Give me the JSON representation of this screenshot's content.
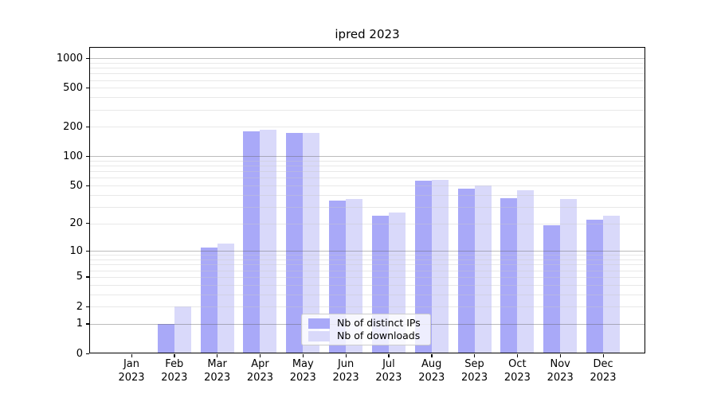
{
  "chart_data": {
    "type": "bar",
    "title": "ipred 2023",
    "categories": [
      "Jan 2023",
      "Feb 2023",
      "Mar 2023",
      "Apr 2023",
      "May 2023",
      "Jun 2023",
      "Jul 2023",
      "Aug 2023",
      "Sep 2023",
      "Oct 2023",
      "Nov 2023",
      "Dec 2023"
    ],
    "series": [
      {
        "name": "Nb of distinct IPs",
        "color": "#a9a9f8",
        "values": [
          0,
          1,
          11,
          181,
          173,
          35,
          24,
          56,
          46,
          37,
          19,
          22
        ]
      },
      {
        "name": "Nb of downloads",
        "color": "#d9d9fa",
        "values": [
          0,
          2,
          12,
          186,
          174,
          36,
          26,
          57,
          50,
          45,
          36,
          24
        ]
      }
    ],
    "xlabel": "",
    "ylabel": "",
    "yscale": "log1p",
    "ylim": [
      0,
      1300
    ],
    "yticks": [
      0,
      1,
      2,
      5,
      10,
      20,
      50,
      100,
      200,
      500,
      1000
    ],
    "grid": "horizontal major+minor",
    "legend_position": "lower center"
  },
  "colors": {
    "background": "#ffffff",
    "axis": "#000000",
    "major_grid": "#bdbdbd",
    "minor_grid": "#ebebeb",
    "bar_dark": "#a9a9f8",
    "bar_light": "#d9d9fa"
  }
}
